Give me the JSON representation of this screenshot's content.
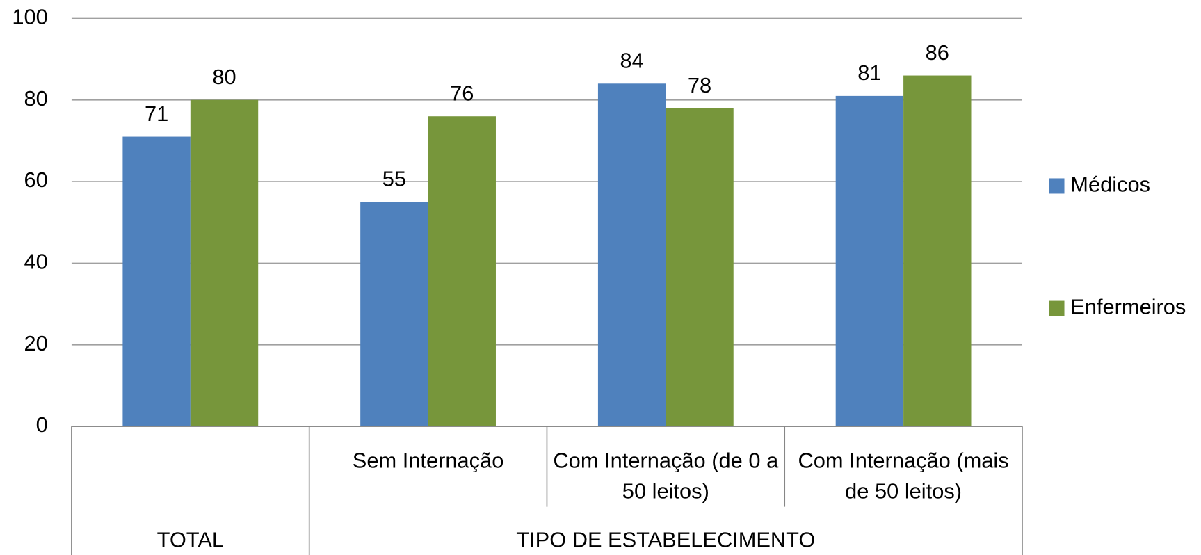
{
  "chart_data": {
    "type": "bar",
    "groups": [
      {
        "name": "TOTAL",
        "categories": [
          null
        ]
      },
      {
        "name": "TIPO DE ESTABELECIMENTO",
        "categories": [
          "Sem Internação",
          "Com Internação (de 0 a 50 leitos)",
          "Com Internação (mais de 50 leitos)"
        ]
      }
    ],
    "series": [
      {
        "name": "Médicos",
        "color": "#4f81bd",
        "values": [
          71,
          55,
          84,
          81
        ]
      },
      {
        "name": "Enfermeiros",
        "color": "#77963b",
        "values": [
          80,
          76,
          78,
          86
        ]
      }
    ],
    "ylim": [
      0,
      100
    ],
    "yticks": [
      0,
      20,
      40,
      60,
      80,
      100
    ],
    "grid": true,
    "legend": "right"
  }
}
